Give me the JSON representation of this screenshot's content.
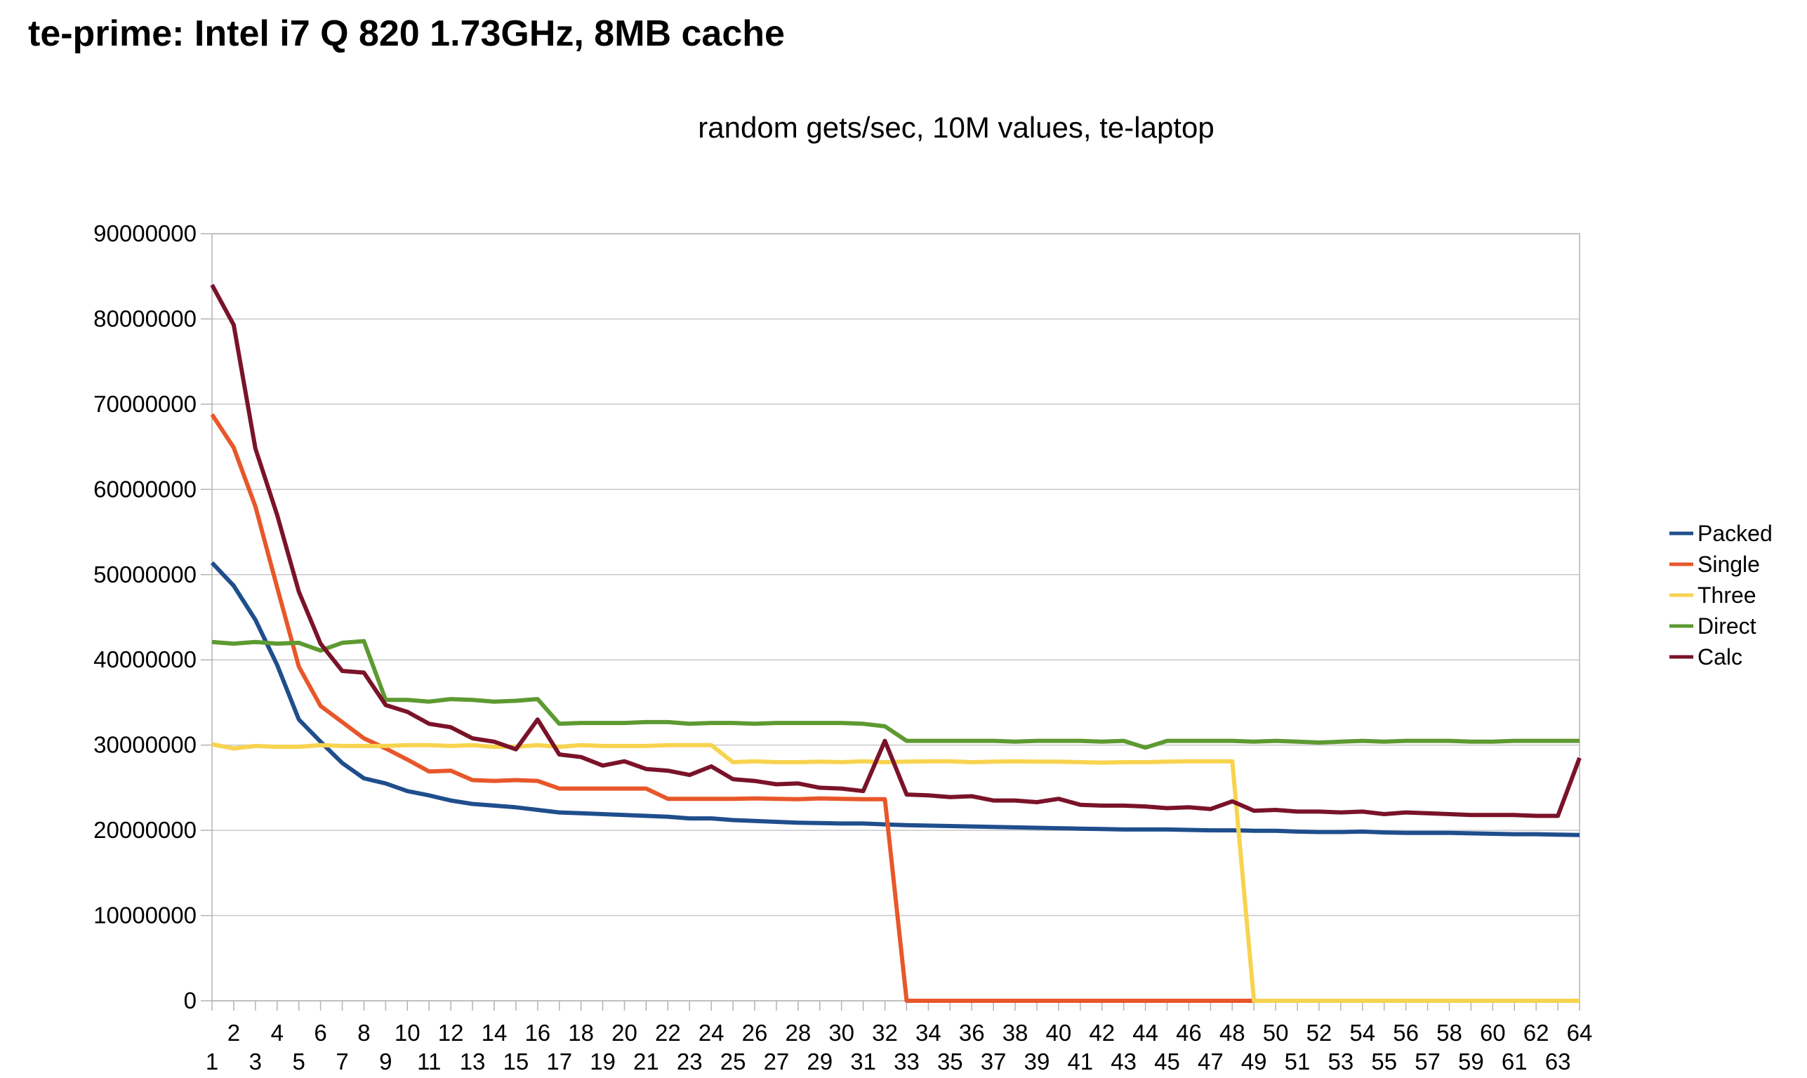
{
  "page_title": "te-prime: Intel i7 Q 820 1.73GHz, 8MB cache",
  "chart_data": {
    "type": "line",
    "title": "random gets/sec, 10M values, te-laptop",
    "xlabel": "",
    "ylabel": "",
    "ylim": [
      0,
      90000000
    ],
    "yticks": [
      0,
      10000000,
      20000000,
      30000000,
      40000000,
      50000000,
      60000000,
      70000000,
      80000000,
      90000000
    ],
    "ytick_labels": [
      "0",
      "10000000",
      "20000000",
      "30000000",
      "40000000",
      "50000000",
      "60000000",
      "70000000",
      "80000000",
      "90000000"
    ],
    "x": [
      1,
      2,
      3,
      4,
      5,
      6,
      7,
      8,
      9,
      10,
      11,
      12,
      13,
      14,
      15,
      16,
      17,
      18,
      19,
      20,
      21,
      22,
      23,
      24,
      25,
      26,
      27,
      28,
      29,
      30,
      31,
      32,
      33,
      34,
      35,
      36,
      37,
      38,
      39,
      40,
      41,
      42,
      43,
      44,
      45,
      46,
      47,
      48,
      49,
      50,
      51,
      52,
      53,
      54,
      55,
      56,
      57,
      58,
      59,
      60,
      61,
      62,
      63,
      64
    ],
    "grid": "horizontal",
    "legend_position": "right",
    "series": [
      {
        "name": "Packed",
        "color": "#1f4e8c",
        "values": [
          51400000,
          48700000,
          44700000,
          39400000,
          33000000,
          30400000,
          27900000,
          26100000,
          25500000,
          24600000,
          24100000,
          23500000,
          23100000,
          22900000,
          22700000,
          22400000,
          22100000,
          22000000,
          21900000,
          21800000,
          21700000,
          21600000,
          21400000,
          21400000,
          21200000,
          21100000,
          21000000,
          20900000,
          20850000,
          20800000,
          20800000,
          20700000,
          20600000,
          20550000,
          20500000,
          20450000,
          20400000,
          20350000,
          20300000,
          20250000,
          20200000,
          20150000,
          20100000,
          20100000,
          20100000,
          20050000,
          20000000,
          20000000,
          19950000,
          19950000,
          19850000,
          19800000,
          19800000,
          19850000,
          19750000,
          19700000,
          19700000,
          19700000,
          19650000,
          19600000,
          19550000,
          19550000,
          19500000,
          19450000
        ]
      },
      {
        "name": "Single",
        "color": "#e8572a",
        "values": [
          68800000,
          64900000,
          58000000,
          48500000,
          39200000,
          34600000,
          32700000,
          30800000,
          29600000,
          28300000,
          26900000,
          27000000,
          25900000,
          25800000,
          25900000,
          25800000,
          24900000,
          24900000,
          24900000,
          24900000,
          24900000,
          23700000,
          23700000,
          23700000,
          23700000,
          23750000,
          23700000,
          23650000,
          23750000,
          23700000,
          23650000,
          23650000,
          0,
          0,
          0,
          0,
          0,
          0,
          0,
          0,
          0,
          0,
          0,
          0,
          0,
          0,
          0,
          0,
          0,
          0,
          0,
          0,
          0,
          0,
          0,
          0,
          0,
          0,
          0,
          0,
          0,
          0,
          0,
          0
        ]
      },
      {
        "name": "Three",
        "color": "#f7d34f",
        "values": [
          30100000,
          29600000,
          29900000,
          29800000,
          29800000,
          30000000,
          29900000,
          29900000,
          29900000,
          30000000,
          30000000,
          29900000,
          30000000,
          29800000,
          29800000,
          30000000,
          29800000,
          30000000,
          29900000,
          29900000,
          29900000,
          30000000,
          30000000,
          30000000,
          28000000,
          28100000,
          28000000,
          28000000,
          28050000,
          28000000,
          28100000,
          28000000,
          28050000,
          28100000,
          28100000,
          28000000,
          28050000,
          28100000,
          28050000,
          28050000,
          28000000,
          27950000,
          28000000,
          28000000,
          28050000,
          28100000,
          28100000,
          28100000,
          0,
          0,
          0,
          0,
          0,
          0,
          0,
          0,
          0,
          0,
          0,
          0,
          0,
          0,
          0,
          0
        ]
      },
      {
        "name": "Direct",
        "color": "#5d9a32",
        "values": [
          42100000,
          41900000,
          42100000,
          41900000,
          42000000,
          41100000,
          42000000,
          42200000,
          35300000,
          35300000,
          35100000,
          35400000,
          35300000,
          35100000,
          35200000,
          35400000,
          32500000,
          32600000,
          32600000,
          32600000,
          32700000,
          32700000,
          32500000,
          32600000,
          32600000,
          32500000,
          32600000,
          32600000,
          32600000,
          32600000,
          32500000,
          32200000,
          30500000,
          30500000,
          30500000,
          30500000,
          30500000,
          30400000,
          30500000,
          30500000,
          30500000,
          30400000,
          30500000,
          29700000,
          30500000,
          30500000,
          30500000,
          30500000,
          30400000,
          30500000,
          30400000,
          30300000,
          30400000,
          30500000,
          30400000,
          30500000,
          30500000,
          30500000,
          30400000,
          30400000,
          30500000,
          30500000,
          30500000,
          30500000
        ]
      },
      {
        "name": "Calc",
        "color": "#7a1329",
        "values": [
          84000000,
          79300000,
          64800000,
          57000000,
          48000000,
          41900000,
          38700000,
          38500000,
          34700000,
          33900000,
          32500000,
          32100000,
          30800000,
          30400000,
          29500000,
          33000000,
          28900000,
          28600000,
          27600000,
          28100000,
          27200000,
          27000000,
          26500000,
          27500000,
          26000000,
          25800000,
          25400000,
          25500000,
          25000000,
          24900000,
          24600000,
          30500000,
          24200000,
          24100000,
          23900000,
          24000000,
          23500000,
          23500000,
          23300000,
          23700000,
          23000000,
          22900000,
          22900000,
          22800000,
          22600000,
          22700000,
          22500000,
          23400000,
          22300000,
          22400000,
          22200000,
          22200000,
          22100000,
          22200000,
          21900000,
          22100000,
          22000000,
          21900000,
          21800000,
          21800000,
          21800000,
          21700000,
          21700000,
          28500000
        ]
      }
    ]
  }
}
